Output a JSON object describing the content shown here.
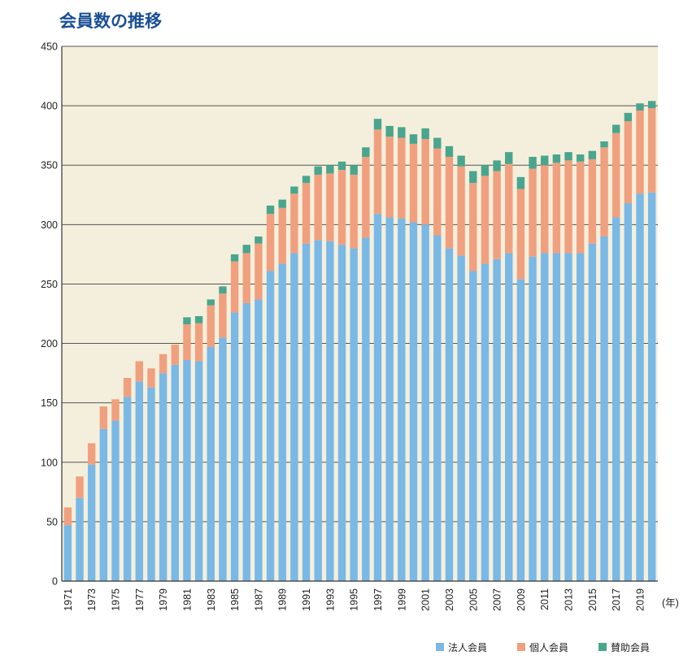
{
  "chart_data": {
    "type": "bar",
    "stacked": true,
    "title": "会員数の推移",
    "xlabel": "",
    "ylabel": "",
    "x_unit": "(年)",
    "ylim": [
      0,
      450
    ],
    "yticks": [
      0,
      50,
      100,
      150,
      200,
      250,
      300,
      350,
      400,
      450
    ],
    "grid": true,
    "legend_position": "bottom-right",
    "categories": [
      1971,
      1972,
      1973,
      1974,
      1975,
      1976,
      1977,
      1978,
      1979,
      1980,
      1981,
      1982,
      1983,
      1984,
      1985,
      1986,
      1987,
      1988,
      1989,
      1990,
      1991,
      1992,
      1993,
      1994,
      1995,
      1996,
      1997,
      1998,
      1999,
      2000,
      2001,
      2002,
      2003,
      2004,
      2005,
      2006,
      2007,
      2008,
      2009,
      2010,
      2011,
      2012,
      2013,
      2014,
      2015,
      2016,
      2017,
      2018,
      2019,
      2020
    ],
    "xtick_labels": [
      1971,
      1973,
      1975,
      1977,
      1979,
      1981,
      1983,
      1985,
      1987,
      1989,
      1991,
      1993,
      1995,
      1997,
      1999,
      2001,
      2003,
      2005,
      2007,
      2009,
      2011,
      2013,
      2015,
      2017,
      2019
    ],
    "series": [
      {
        "name": "法人会員",
        "color": "#7ab8e6",
        "values": [
          47,
          70,
          98,
          128,
          135,
          155,
          168,
          163,
          175,
          182,
          186,
          185,
          197,
          205,
          226,
          234,
          237,
          261,
          267,
          276,
          284,
          287,
          286,
          283,
          280,
          289,
          309,
          306,
          305,
          302,
          300,
          291,
          280,
          274,
          261,
          267,
          271,
          276,
          254,
          273,
          276,
          276,
          276,
          276,
          284,
          290,
          306,
          318,
          326,
          327
        ]
      },
      {
        "name": "個人会員",
        "color": "#f0a07e",
        "values": [
          15,
          18,
          18,
          19,
          18,
          16,
          17,
          16,
          16,
          17,
          30,
          32,
          35,
          37,
          43,
          42,
          47,
          48,
          47,
          50,
          51,
          55,
          57,
          63,
          62,
          68,
          71,
          68,
          68,
          66,
          72,
          73,
          77,
          75,
          74,
          74,
          74,
          75,
          76,
          74,
          74,
          76,
          78,
          77,
          71,
          75,
          71,
          69,
          70,
          71
        ]
      },
      {
        "name": "賛助会員",
        "color": "#4aa58e",
        "values": [
          0,
          0,
          0,
          0,
          0,
          0,
          0,
          0,
          0,
          0,
          6,
          6,
          5,
          6,
          6,
          7,
          6,
          7,
          7,
          6,
          6,
          7,
          7,
          7,
          8,
          8,
          9,
          9,
          9,
          8,
          9,
          9,
          9,
          9,
          10,
          9,
          9,
          10,
          10,
          10,
          8,
          7,
          7,
          6,
          7,
          5,
          7,
          7,
          6,
          6
        ]
      }
    ]
  }
}
